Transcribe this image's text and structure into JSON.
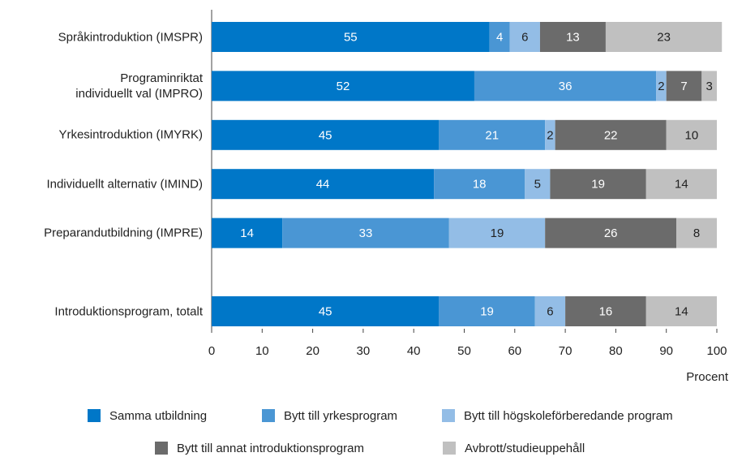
{
  "chart_data": {
    "type": "stacked_barh",
    "categories": [
      "Språkintroduktion (IMSPR)",
      "Programinriktat\nindividuellt val (IMPRO)",
      "Yrkesintroduktion (IMYRK)",
      "Individuellt alternativ (IMIND)",
      "Preparandutbildning (IMPRE)",
      "Introduktionsprogram, totalt"
    ],
    "series": [
      {
        "name": "Samma utbildning",
        "color": "#0077c8",
        "label_color": "#ffffff",
        "values": [
          55,
          52,
          45,
          44,
          14,
          45
        ]
      },
      {
        "name": "Bytt till yrkesprogram",
        "color": "#4a96d4",
        "label_color": "#ffffff",
        "values": [
          4,
          36,
          21,
          18,
          33,
          19
        ]
      },
      {
        "name": "Bytt till högskoleförberedande program",
        "color": "#93bde6",
        "label_color": "#222222",
        "values": [
          6,
          2,
          2,
          5,
          19,
          6
        ]
      },
      {
        "name": "Bytt till annat introduktionsprogram",
        "color": "#6b6b6b",
        "label_color": "#ffffff",
        "values": [
          13,
          7,
          22,
          19,
          26,
          16
        ]
      },
      {
        "name": "Avbrott/studieuppehåll",
        "color": "#c0c0c0",
        "label_color": "#222222",
        "values": [
          23,
          3,
          10,
          14,
          8,
          14
        ]
      }
    ],
    "xlabel": "Procent",
    "xlim": [
      0,
      100
    ],
    "xticks": [
      0,
      10,
      20,
      30,
      40,
      50,
      60,
      70,
      80,
      90,
      100
    ],
    "legend": "bottom"
  }
}
